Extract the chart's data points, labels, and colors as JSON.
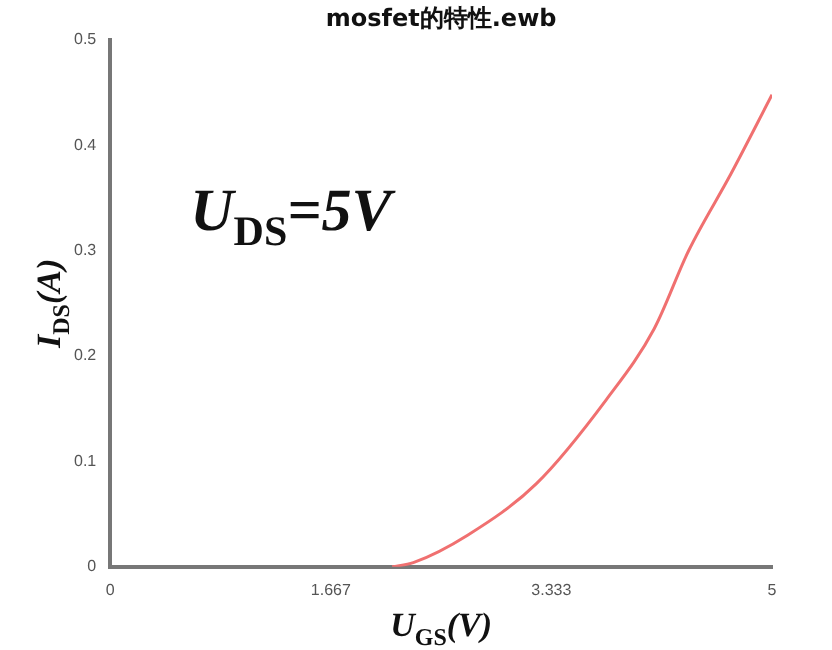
{
  "chart_data": {
    "type": "line",
    "title": "mosfet的特性.ewb",
    "xlabel": "U$_{GS}$(V)",
    "ylabel": "I$_{DS}$(A)",
    "annotations": [
      "U$_{DS}$=5V"
    ],
    "series": [
      {
        "color": "#f07070",
        "x": [
          2.13,
          2.29,
          2.7,
          3.22,
          3.75,
          4.11,
          4.37,
          4.69,
          5
        ],
        "values": [
          0,
          0.004,
          0.03,
          0.079,
          0.159,
          0.226,
          0.3,
          0.373,
          0.448
        ]
      }
    ],
    "xlim": [
      0,
      5
    ],
    "xticks": [
      0,
      {
        "value": 1.667,
        "label": "1.667"
      },
      {
        "value": 3.333,
        "label": "3.333"
      },
      5
    ],
    "ylim": [
      0,
      0.5
    ],
    "yticks": [
      0,
      0.1,
      0.2,
      0.3,
      0.4,
      0.5
    ],
    "grid": false,
    "legend": false,
    "marker": "none",
    "line_style": "solid"
  }
}
